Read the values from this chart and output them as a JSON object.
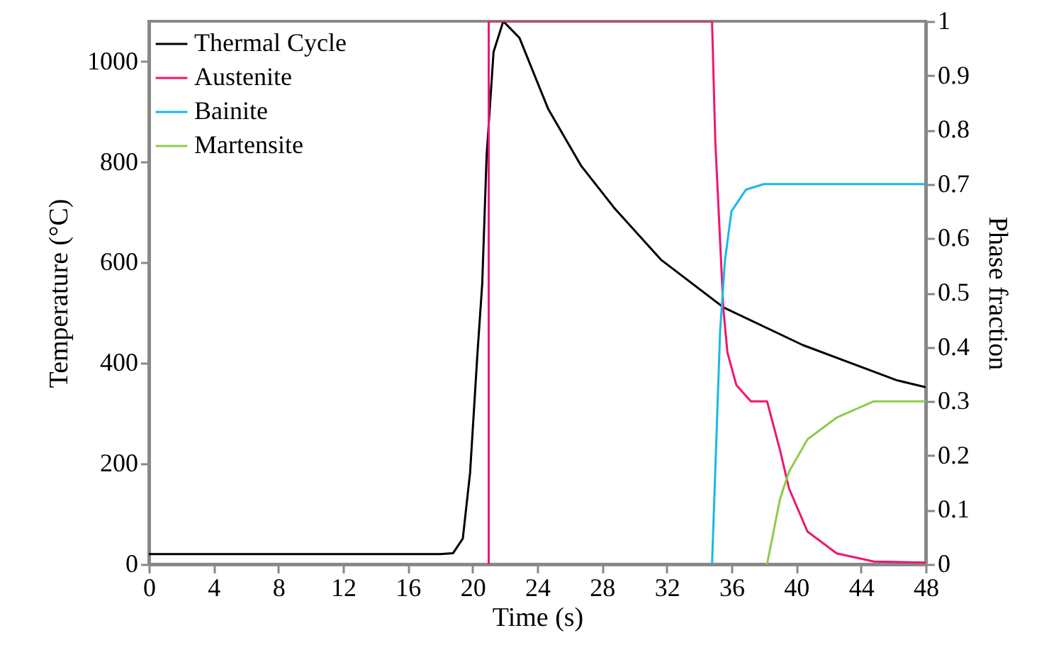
{
  "chart_data": {
    "type": "line",
    "xlabel": "Time (s)",
    "ylabel": "Temperature (°C)",
    "y2label": "Phase fraction",
    "xlim": [
      0,
      48
    ],
    "xticks": [
      0,
      4,
      8,
      12,
      16,
      20,
      24,
      28,
      32,
      36,
      40,
      44,
      48
    ],
    "ylim": [
      0,
      1080
    ],
    "yticks": [
      0,
      200,
      400,
      600,
      800,
      1000
    ],
    "y2lim": [
      0,
      1
    ],
    "y2ticks": [
      0,
      0.1,
      0.2,
      0.3,
      0.4,
      0.5,
      0.6,
      0.7,
      0.8,
      0.9,
      1
    ],
    "grid": false,
    "legend": "top left",
    "marker": "none",
    "line_style": "solid",
    "series": [
      {
        "name": "Thermal Cycle",
        "color": "#000000",
        "x": [
          0,
          18,
          18.8,
          19.4,
          19.85,
          20.3,
          20.6,
          20.87,
          21.3,
          21.9,
          22.9,
          24.67,
          26.7,
          28.75,
          31.67,
          35.5,
          40.4,
          46.2,
          48
        ],
        "values": [
          20,
          20,
          22,
          51,
          182,
          417,
          558,
          812,
          1019,
          1080,
          1047,
          906,
          793,
          709,
          605,
          511,
          436,
          366,
          352
        ]
      },
      {
        "name": "Austenite",
        "color": "#f0156e",
        "axis": "y2",
        "x": [
          21,
          21,
          34.8,
          35,
          35.5,
          35.75,
          36.3,
          37.2,
          38.2,
          39,
          39.55,
          40.7,
          42.5,
          44.8,
          48
        ],
        "values": [
          0,
          1,
          1,
          0.78,
          0.47,
          0.39,
          0.33,
          0.3,
          0.3,
          0.21,
          0.14,
          0.06,
          0.02,
          0.005,
          0.003
        ]
      },
      {
        "name": "Bainite",
        "color": "#1ab8e8",
        "axis": "y2",
        "x": [
          34.8,
          35.3,
          35.6,
          36,
          36.9,
          38,
          48
        ],
        "values": [
          0,
          0.43,
          0.56,
          0.65,
          0.69,
          0.7,
          0.7
        ]
      },
      {
        "name": "Martensite",
        "color": "#8dcc4a",
        "axis": "y2",
        "x": [
          38.2,
          39,
          39.55,
          40.7,
          42.5,
          44.8,
          48
        ],
        "values": [
          0,
          0.12,
          0.17,
          0.23,
          0.27,
          0.3,
          0.3
        ]
      }
    ]
  }
}
